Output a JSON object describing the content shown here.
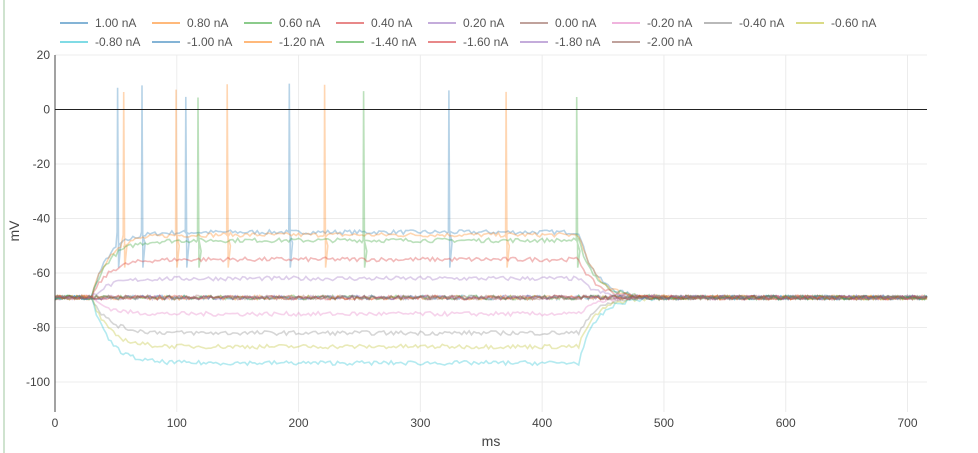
{
  "chart_data": {
    "type": "line",
    "xlabel": "ms",
    "ylabel": "mV",
    "xlim": [
      0,
      716
    ],
    "ylim": [
      -111,
      20
    ],
    "x_ticks": [
      0,
      100,
      200,
      300,
      400,
      500,
      600,
      700
    ],
    "y_ticks": [
      -100,
      -80,
      -60,
      -40,
      -20,
      0,
      20
    ],
    "grid": true,
    "legend_position": "top",
    "zero_line": true,
    "stimulus": {
      "onset_ms": 30,
      "offset_ms": 430
    },
    "resting_mV": -69,
    "series": [
      {
        "name": "1.00 nA",
        "color": "#1f77b4",
        "plateau_mV": -45,
        "spikes_ms": [
          51,
          71,
          107,
          192,
          323
        ]
      },
      {
        "name": "0.80 nA",
        "color": "#ff7f0e",
        "plateau_mV": -46,
        "spikes_ms": [
          56,
          99,
          141,
          221,
          370
        ]
      },
      {
        "name": "0.60 nA",
        "color": "#2ca02c",
        "plateau_mV": -48,
        "spikes_ms": [
          117,
          253,
          428
        ]
      },
      {
        "name": "0.40 nA",
        "color": "#d62728",
        "plateau_mV": -55,
        "spikes_ms": []
      },
      {
        "name": "0.20 nA",
        "color": "#9467bd",
        "plateau_mV": -62,
        "spikes_ms": []
      },
      {
        "name": "0.00 nA",
        "color": "#8c564b",
        "plateau_mV": -69,
        "spikes_ms": []
      },
      {
        "name": "-0.20 nA",
        "color": "#e377c2",
        "plateau_mV": -75,
        "spikes_ms": []
      },
      {
        "name": "-0.40 nA",
        "color": "#7f7f7f",
        "plateau_mV": -82,
        "spikes_ms": []
      },
      {
        "name": "-0.60 nA",
        "color": "#bcbd22",
        "plateau_mV": -87,
        "spikes_ms": []
      },
      {
        "name": "-0.80 nA",
        "color": "#17becf",
        "plateau_mV": -93,
        "spikes_ms": []
      },
      {
        "name": "-1.00 nA",
        "color": "#1f77b4",
        "plateau_mV": -69,
        "spikes_ms": []
      },
      {
        "name": "-1.20 nA",
        "color": "#ff7f0e",
        "plateau_mV": -69,
        "spikes_ms": []
      },
      {
        "name": "-1.40 nA",
        "color": "#2ca02c",
        "plateau_mV": -69,
        "spikes_ms": []
      },
      {
        "name": "-1.60 nA",
        "color": "#d62728",
        "plateau_mV": -69,
        "spikes_ms": []
      },
      {
        "name": "-1.80 nA",
        "color": "#9467bd",
        "plateau_mV": -69,
        "spikes_ms": []
      },
      {
        "name": "-2.00 nA",
        "color": "#8c564b",
        "plateau_mV": -69,
        "spikes_ms": []
      }
    ]
  }
}
